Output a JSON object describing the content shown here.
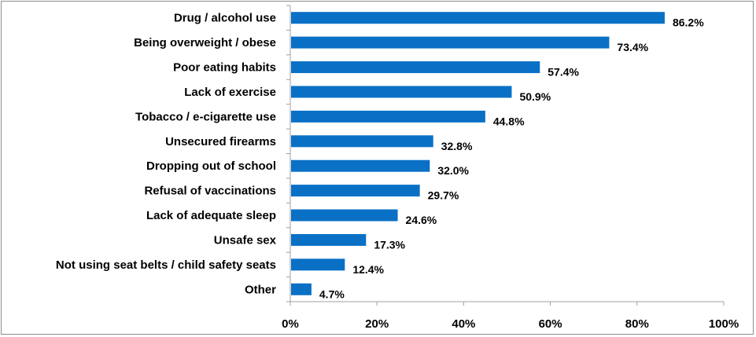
{
  "chart_data": {
    "type": "bar",
    "orientation": "horizontal",
    "categories": [
      "Drug / alcohol use",
      "Being overweight / obese",
      "Poor eating habits",
      "Lack of exercise",
      "Tobacco / e-cigarette use",
      "Unsecured firearms",
      "Dropping out of school",
      "Refusal of vaccinations",
      "Lack of adequate sleep",
      "Unsafe sex",
      "Not using seat belts / child safety seats",
      "Other"
    ],
    "values": [
      86.2,
      73.4,
      57.4,
      50.9,
      44.8,
      32.8,
      32.0,
      29.7,
      24.6,
      17.3,
      12.4,
      4.7
    ],
    "value_labels": [
      "86.2%",
      "73.4%",
      "57.4%",
      "50.9%",
      "44.8%",
      "32.8%",
      "32.0%",
      "29.7%",
      "24.6%",
      "17.3%",
      "12.4%",
      "4.7%"
    ],
    "xticks": [
      "0%",
      "20%",
      "40%",
      "60%",
      "80%",
      "100%"
    ],
    "xlim": [
      0,
      100
    ],
    "bar_color": "#0a70c6",
    "grid": false,
    "legend": "none",
    "title": "",
    "xlabel": "",
    "ylabel": ""
  }
}
